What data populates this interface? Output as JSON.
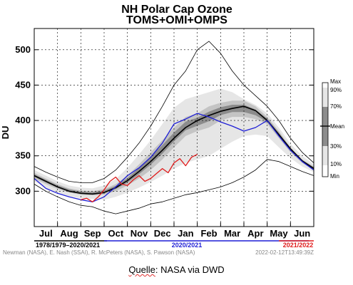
{
  "chart_data": {
    "type": "line",
    "title": "NH Polar Cap Ozone",
    "subtitle": "TOMS+OMI+OMPS",
    "ylabel": "DU",
    "ylim": [
      250,
      530
    ],
    "yticks": [
      300,
      350,
      400,
      450,
      500
    ],
    "xlim": [
      0,
      12
    ],
    "months": [
      "Jul",
      "Aug",
      "Sep",
      "Oct",
      "Nov",
      "Dec",
      "Jan",
      "Feb",
      "Mar",
      "Apr",
      "May",
      "Jun"
    ],
    "grid": true,
    "x": [
      0,
      0.5,
      1,
      1.5,
      2,
      2.5,
      3,
      3.5,
      4,
      4.5,
      5,
      5.5,
      6,
      6.5,
      7,
      7.5,
      8,
      8.5,
      9,
      9.5,
      10,
      10.5,
      11,
      11.5,
      12
    ],
    "bands": {
      "min": [
        310,
        300,
        292,
        285,
        280,
        278,
        272,
        268,
        272,
        276,
        282,
        285,
        290,
        295,
        298,
        302,
        306,
        312,
        320,
        330,
        345,
        342,
        335,
        328,
        322
      ],
      "p10": [
        314,
        305,
        298,
        293,
        290,
        289,
        288,
        292,
        298,
        305,
        313,
        322,
        332,
        340,
        345,
        350,
        360,
        370,
        378,
        380,
        378,
        362,
        347,
        335,
        327
      ],
      "p30": [
        318,
        310,
        303,
        298,
        295,
        294,
        295,
        300,
        308,
        318,
        330,
        345,
        362,
        378,
        385,
        390,
        400,
        405,
        405,
        402,
        395,
        375,
        355,
        340,
        330
      ],
      "p70": [
        326,
        318,
        310,
        304,
        301,
        300,
        303,
        310,
        322,
        338,
        355,
        372,
        390,
        405,
        410,
        420,
        425,
        428,
        428,
        420,
        405,
        385,
        362,
        345,
        335
      ],
      "p90": [
        330,
        322,
        314,
        308,
        305,
        304,
        308,
        317,
        333,
        352,
        372,
        395,
        418,
        430,
        435,
        440,
        445,
        440,
        430,
        422,
        410,
        390,
        367,
        350,
        338
      ],
      "max": [
        335,
        327,
        320,
        314,
        312,
        312,
        318,
        330,
        348,
        368,
        392,
        420,
        450,
        470,
        500,
        512,
        495,
        470,
        450,
        435,
        420,
        400,
        375,
        355,
        340
      ]
    },
    "series": [
      {
        "name": "Mean",
        "color": "#000000",
        "values": [
          322,
          314,
          306,
          300,
          297,
          296,
          298,
          305,
          315,
          328,
          342,
          358,
          375,
          390,
          400,
          407,
          413,
          417,
          420,
          414,
          400,
          380,
          360,
          343,
          332
        ]
      },
      {
        "name": "2020/2021",
        "color": "#1f1fd6",
        "values": [
          318,
          304,
          297,
          292,
          288,
          285,
          292,
          306,
          322,
          333,
          348,
          368,
          395,
          402,
          410,
          405,
          398,
          392,
          385,
          390,
          400,
          378,
          358,
          342,
          330
        ]
      },
      {
        "name": "2021/2022",
        "color": "#e01a1a",
        "x": [
          2,
          2.25,
          2.5,
          2.75,
          3,
          3.25,
          3.5,
          3.75,
          4,
          4.25,
          4.5,
          4.75,
          5,
          5.25,
          5.5,
          5.75,
          6,
          6.25,
          6.5,
          6.75,
          7
        ],
        "values": [
          288,
          290,
          285,
          292,
          302,
          314,
          320,
          310,
          308,
          316,
          322,
          314,
          318,
          325,
          332,
          326,
          340,
          346,
          336,
          348,
          352
        ]
      }
    ],
    "legend": {
      "position": "right",
      "labels": [
        "Max",
        "90%",
        "70%",
        "Mean",
        "30%",
        "10%",
        "Min"
      ]
    },
    "periods": {
      "climatology": "1978/1979–2020/2021",
      "season_a": "2020/2021",
      "season_b": "2021/2022"
    },
    "credits": "Newman (NASA), E. Nash (SSAI), R. McPeters (NASA), S. Pawson (NASA)",
    "timestamp": "2022-02-12T13:49:39Z"
  },
  "caption": {
    "word": "Quelle",
    "rest": ": NASA via DWD"
  },
  "colors": {
    "band_outer": "#e6e6e6",
    "band_mid": "#c4c4c4",
    "band_inner": "#8c8c8c",
    "grid": "#000000"
  }
}
